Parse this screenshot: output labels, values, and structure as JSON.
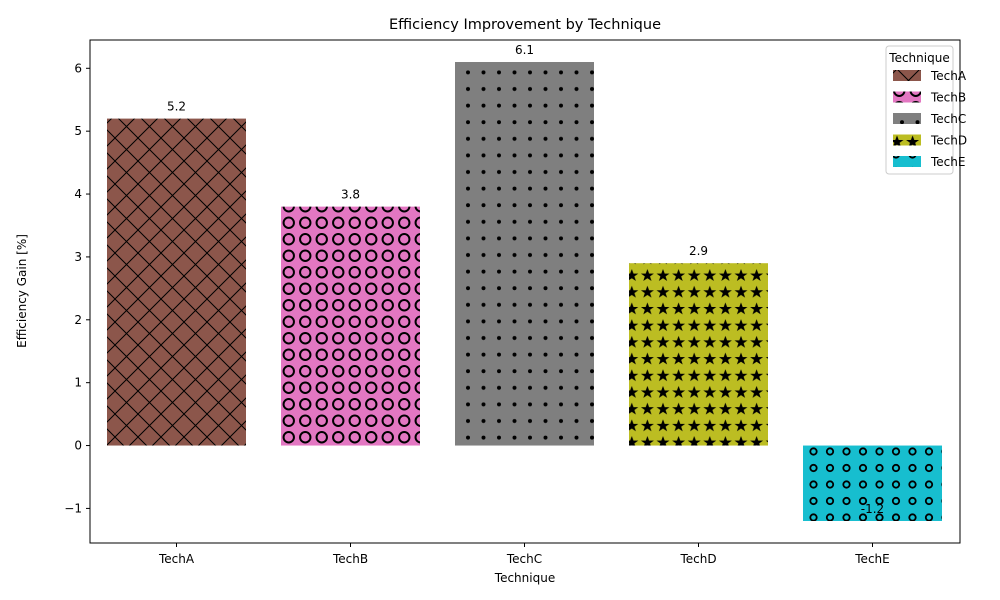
{
  "chart_data": {
    "type": "bar",
    "title": "Efficiency Improvement by Technique",
    "xlabel": "Technique",
    "ylabel": "Efficiency Gain [%]",
    "categories": [
      "TechA",
      "TechB",
      "TechC",
      "TechD",
      "TechE"
    ],
    "values": [
      5.2,
      3.8,
      6.1,
      2.9,
      -1.2
    ],
    "value_labels": [
      "5.2",
      "3.8",
      "6.1",
      "2.9",
      "-1.2"
    ],
    "colors": [
      "#8c564b",
      "#e377c2",
      "#7f7f7f",
      "#bcbd22",
      "#17becf"
    ],
    "patterns": [
      "crosshatch",
      "rings",
      "dots",
      "stars",
      "small-rings"
    ],
    "ylim": [
      -1.55,
      6.45
    ],
    "yticks": [
      -1,
      0,
      1,
      2,
      3,
      4,
      5,
      6
    ],
    "ytick_labels": [
      "−1",
      "0",
      "1",
      "2",
      "3",
      "4",
      "5",
      "6"
    ],
    "grid": false,
    "legend": {
      "title": "Technique",
      "placement": "top-right",
      "entries": [
        "TechA",
        "TechB",
        "TechC",
        "TechD",
        "TechE"
      ]
    }
  }
}
